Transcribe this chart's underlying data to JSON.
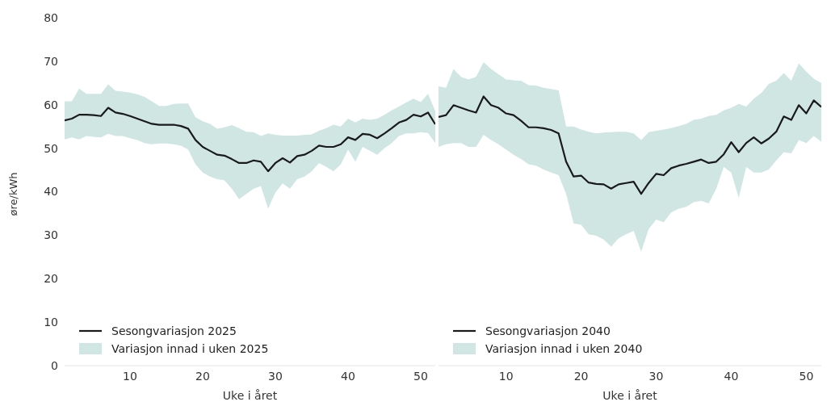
{
  "chart_data": [
    {
      "type": "line",
      "xlabel": "Uke i året",
      "ylabel": "øre/kWh",
      "annotations": [
        "Variasjon innad i uken 2025"
      ],
      "x": [
        1,
        2,
        3,
        4,
        5,
        6,
        7,
        8,
        9,
        10,
        11,
        12,
        13,
        14,
        15,
        16,
        17,
        18,
        19,
        20,
        21,
        22,
        23,
        24,
        25,
        26,
        27,
        28,
        29,
        30,
        31,
        32,
        33,
        34,
        35,
        36,
        37,
        38,
        39,
        40,
        41,
        42,
        43,
        44,
        45,
        46,
        47,
        48,
        49,
        50,
        51,
        52
      ],
      "xlim": [
        1,
        52
      ],
      "xticks": [
        10,
        20,
        30,
        40,
        50
      ],
      "ylim": [
        0,
        80
      ],
      "yticks": [
        0,
        10,
        20,
        30,
        40,
        50,
        60,
        70,
        80
      ],
      "grid": false,
      "legend": "bottom left",
      "series": [
        {
          "name": "Sesongvariasjon 2025",
          "color": "#1a1a1a",
          "values": [
            56.4,
            56.8,
            57.7,
            57.7,
            57.6,
            57.4,
            59.3,
            58.2,
            57.9,
            57.4,
            56.8,
            56.2,
            55.6,
            55.4,
            55.4,
            55.4,
            55.1,
            54.5,
            51.9,
            50.3,
            49.4,
            48.5,
            48.3,
            47.5,
            46.6,
            46.6,
            47.2,
            46.9,
            44.7,
            46.6,
            47.7,
            46.7,
            48.2,
            48.5,
            49.4,
            50.6,
            50.3,
            50.3,
            50.9,
            52.5,
            51.9,
            53.3,
            53.1,
            52.3,
            53.4,
            54.6,
            55.9,
            56.5,
            57.7,
            57.3,
            58.2,
            55.5
          ],
          "lower": [
            52,
            52.5,
            52,
            52.8,
            52.6,
            52.5,
            53.3,
            52.8,
            52.8,
            52.3,
            51.9,
            51.2,
            50.9,
            51.1,
            51.1,
            50.9,
            50.6,
            49.7,
            46.3,
            44.4,
            43.5,
            42.9,
            42.6,
            40.7,
            38.3,
            39.5,
            40.7,
            41.3,
            36.1,
            39.8,
            41.9,
            40.7,
            42.9,
            43.5,
            44.7,
            46.6,
            45.7,
            44.7,
            46.3,
            49.7,
            46.9,
            50.3,
            49.4,
            48.5,
            50,
            51.2,
            52.8,
            53.4,
            53.4,
            53.7,
            53.5,
            51.2
          ],
          "upper": [
            60.8,
            60.8,
            63.7,
            62.5,
            62.5,
            62.5,
            64.7,
            63.2,
            63,
            62.8,
            62.4,
            61.8,
            60.8,
            59.7,
            59.7,
            60.2,
            60.3,
            60.3,
            57.1,
            56.2,
            55.6,
            54.5,
            54.8,
            55.3,
            54.6,
            53.8,
            53.7,
            52.8,
            53.4,
            53.1,
            52.9,
            52.9,
            52.9,
            53.1,
            53.2,
            54,
            54.6,
            55.4,
            55,
            56.8,
            55.9,
            56.8,
            56.5,
            56.8,
            57.7,
            58.7,
            59.6,
            60.5,
            61.4,
            60.6,
            62.5,
            58.5
          ]
        }
      ]
    },
    {
      "type": "line",
      "xlabel": "Uke i året",
      "annotations": [
        "Variasjon innad i uken 2040"
      ],
      "x": [
        1,
        2,
        3,
        4,
        5,
        6,
        7,
        8,
        9,
        10,
        11,
        12,
        13,
        14,
        15,
        16,
        17,
        18,
        19,
        20,
        21,
        22,
        23,
        24,
        25,
        26,
        27,
        28,
        29,
        30,
        31,
        32,
        33,
        34,
        35,
        36,
        37,
        38,
        39,
        40,
        41,
        42,
        43,
        44,
        45,
        46,
        47,
        48,
        49,
        50,
        51,
        52
      ],
      "xlim": [
        1,
        52
      ],
      "xticks": [
        10,
        20,
        30,
        40,
        50
      ],
      "ylim": [
        0,
        80
      ],
      "yticks": [
        0,
        10,
        20,
        30,
        40,
        50,
        60,
        70,
        80
      ],
      "tick_labels": "x",
      "grid": false,
      "legend": "bottom left",
      "series": [
        {
          "name": "Sesongvariasjon 2040",
          "color": "#1a1a1a",
          "values": [
            57.2,
            57.6,
            59.9,
            59.3,
            58.7,
            58.2,
            61.9,
            59.9,
            59.3,
            58,
            57.6,
            56.3,
            54.8,
            54.8,
            54.6,
            54.2,
            53.4,
            46.9,
            43.5,
            43.7,
            42.1,
            41.8,
            41.7,
            40.7,
            41.7,
            42,
            42.3,
            39.5,
            42,
            44.1,
            43.8,
            45.4,
            46,
            46.4,
            46.9,
            47.4,
            46.6,
            46.9,
            48.6,
            51.4,
            49.1,
            51.2,
            52.5,
            51.1,
            52.2,
            53.8,
            57.3,
            56.5,
            59.9,
            58,
            61,
            59.5
          ],
          "lower": [
            50.3,
            50.9,
            51.2,
            51.2,
            50.3,
            50.3,
            53.1,
            51.9,
            50.9,
            49.7,
            48.5,
            47.5,
            46.3,
            46,
            45.1,
            44.4,
            43.8,
            39.5,
            32.7,
            32.4,
            30.2,
            29.9,
            29,
            27.4,
            29.3,
            30.2,
            31,
            26.2,
            31.4,
            33.6,
            33,
            35.2,
            36.1,
            36.5,
            37.6,
            37.9,
            37.3,
            40.7,
            45.7,
            44.4,
            38.6,
            45.7,
            44.4,
            44.4,
            45.1,
            47.2,
            49.1,
            48.8,
            51.9,
            51.2,
            52.8,
            51.5
          ],
          "upper": [
            64.2,
            63.9,
            68.2,
            66.4,
            65.8,
            66.4,
            69.8,
            68.2,
            67,
            65.8,
            65.6,
            65.5,
            64.5,
            64.4,
            63.9,
            63.6,
            63.3,
            55,
            55,
            54.3,
            53.8,
            53.4,
            53.6,
            53.7,
            53.8,
            53.8,
            53.4,
            51.9,
            53.7,
            54,
            54.3,
            54.6,
            55.1,
            55.6,
            56.5,
            56.8,
            57.4,
            57.7,
            58.7,
            59.3,
            60.2,
            59.6,
            61.4,
            62.7,
            64.8,
            65.5,
            67.3,
            65.5,
            69.5,
            67.6,
            66,
            65
          ]
        }
      ]
    }
  ]
}
